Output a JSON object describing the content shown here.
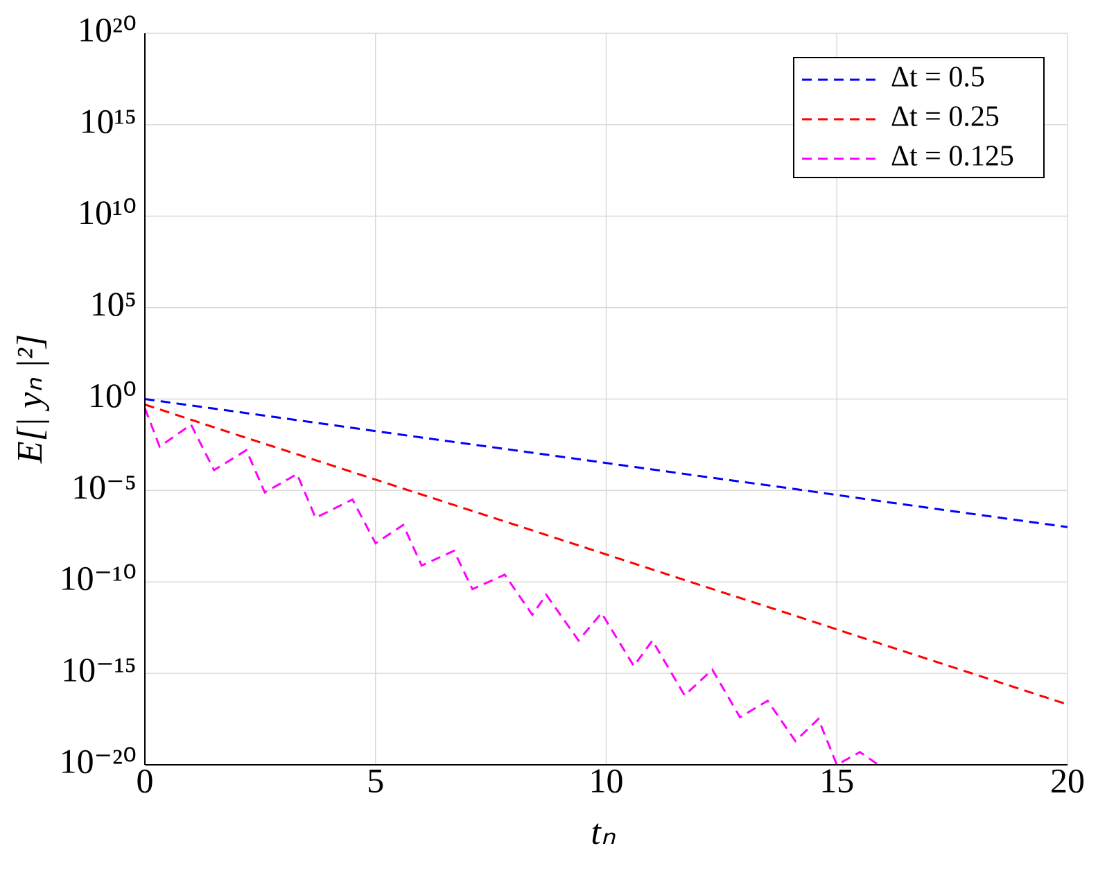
{
  "chart_data": {
    "type": "line",
    "xlabel": "tₙ",
    "ylabel": "E[| yₙ |²]",
    "log_y": true,
    "grid": true,
    "legend": "upper right",
    "xlim": [
      0,
      20
    ],
    "xticks": [
      0,
      5,
      10,
      15,
      20
    ],
    "ylim": [
      1e-20,
      1e+20
    ],
    "yticks": [
      {
        "value": 1e-20,
        "label": "10⁻²⁰"
      },
      {
        "value": 1e-15,
        "label": "10⁻¹⁵"
      },
      {
        "value": 1e-10,
        "label": "10⁻¹⁰"
      },
      {
        "value": 1e-05,
        "label": "10⁻⁵"
      },
      {
        "value": 1,
        "label": "10⁰"
      },
      {
        "value": 100000.0,
        "label": "10⁵"
      },
      {
        "value": 10000000000.0,
        "label": "10¹⁰"
      },
      {
        "value": 1000000000000000.0,
        "label": "10¹⁵"
      },
      {
        "value": 1e+20,
        "label": "10²⁰"
      }
    ],
    "series": [
      {
        "name": "Δt = 0.5",
        "color": "#0000ff",
        "x": [
          0,
          2,
          4,
          6,
          8,
          10,
          12,
          14,
          16,
          18,
          20
        ],
        "values": [
          1,
          0.2,
          0.04,
          0.0079,
          0.0016,
          0.00032,
          6.3e-05,
          1.3e-05,
          2.5e-06,
          5e-07,
          1e-07
        ]
      },
      {
        "name": "Δt = 0.25",
        "color": "#ff0000",
        "x": [
          0,
          2,
          4,
          6,
          8,
          10,
          12,
          14,
          16,
          18,
          20
        ],
        "values": [
          0.5,
          0.011,
          0.00026,
          6e-06,
          1.4e-07,
          3.2e-09,
          7.2e-11,
          1.7e-12,
          3.8e-14,
          8.7e-16,
          2e-17
        ]
      },
      {
        "name": "Δt = 0.125",
        "color": "#ff00ff",
        "x": [
          0,
          0.32,
          1.0,
          1.5,
          2.2,
          2.6,
          3.3,
          3.7,
          4.5,
          5.0,
          5.6,
          6.0,
          6.7,
          7.1,
          7.8,
          8.4,
          8.7,
          9.4,
          9.9,
          10.6,
          11.0,
          11.7,
          12.3,
          12.9,
          13.5,
          14.1,
          14.6,
          15.0,
          15.5,
          15.9
        ],
        "values": [
          0.32,
          0.0025,
          0.04,
          0.00013,
          0.0016,
          7.9e-06,
          7.9e-05,
          3.2e-07,
          3.2e-06,
          1.3e-08,
          1.3e-07,
          7.9e-10,
          5e-09,
          4e-11,
          2.5e-10,
          1.6e-12,
          2e-11,
          6.3e-14,
          2e-12,
          2.5e-15,
          6.3e-14,
          6.3e-17,
          1.6e-15,
          4e-18,
          3.2e-17,
          2e-19,
          3.2e-18,
          1e-20,
          5e-20,
          1e-20
        ]
      }
    ]
  }
}
